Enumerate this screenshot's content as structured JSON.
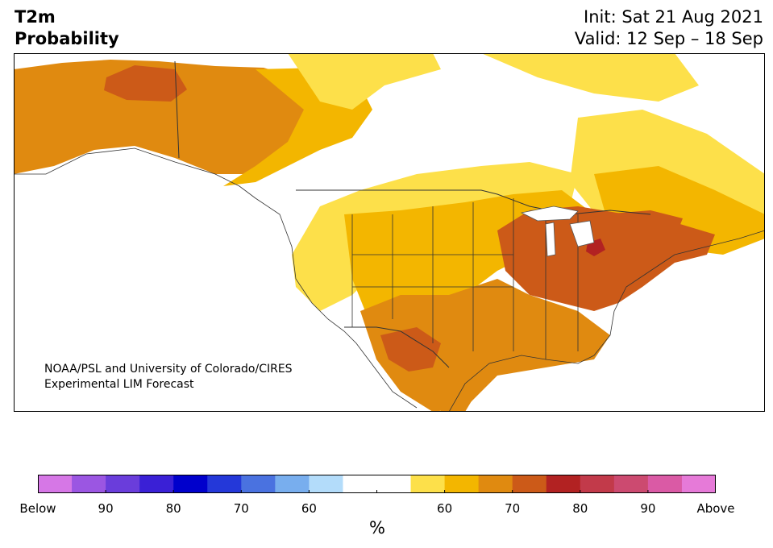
{
  "title": {
    "variable": "T2m",
    "product": "Probability",
    "init": "Init: Sat 21 Aug 2021",
    "valid": "Valid: 12 Sep – 18 Sep"
  },
  "credit": {
    "line1": "NOAA/PSL and University of Colorado/CIRES",
    "line2": "Experimental LIM Forecast"
  },
  "map": {
    "region": "North America",
    "layers": [
      "coastlines",
      "country-borders",
      "state-province-borders",
      "lakes"
    ],
    "border_color": "#333333",
    "land_outline_color": "#555555"
  },
  "colorbar": {
    "unit": "%",
    "colors": [
      "#d677e6",
      "#9b56e2",
      "#6a3ddb",
      "#3a20d6",
      "#0000cc",
      "#2438d9",
      "#4a72e0",
      "#78aeee",
      "#b3dcfa",
      "#ffffff",
      "#ffffff",
      "#fde04a",
      "#f3b600",
      "#e08a10",
      "#cc5a18",
      "#b22222",
      "#c23a4a",
      "#cc4a70",
      "#da5aa5",
      "#e67ad8"
    ],
    "tick_labels": [
      {
        "label": "Below",
        "pos": 0
      },
      {
        "label": "90",
        "pos": 1
      },
      {
        "label": "80",
        "pos": 2
      },
      {
        "label": "70",
        "pos": 3
      },
      {
        "label": "60",
        "pos": 4
      },
      {
        "label": "",
        "pos": 5
      },
      {
        "label": "60",
        "pos": 6
      },
      {
        "label": "70",
        "pos": 7
      },
      {
        "label": "80",
        "pos": 8
      },
      {
        "label": "90",
        "pos": 9
      },
      {
        "label": "Above",
        "pos": 10
      }
    ]
  }
}
